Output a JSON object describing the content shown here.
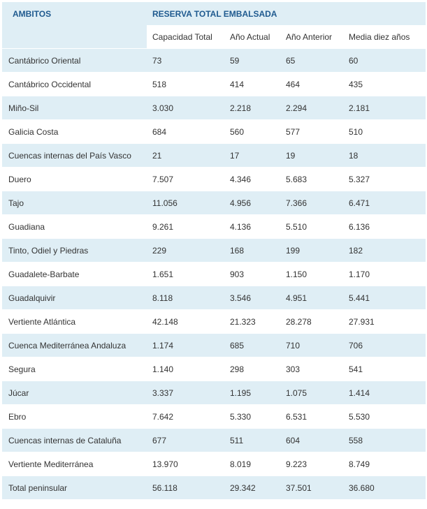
{
  "header": {
    "ambitos_label": "AMBITOS",
    "reserva_label": "RESERVA TOTAL EMBALSADA",
    "columns": [
      "Capacidad Total",
      "Año Actual",
      "Año Anterior",
      "Media diez años"
    ]
  },
  "rows": [
    {
      "ambito": "Cantábrico Oriental",
      "capacidad": "73",
      "actual": "59",
      "anterior": "65",
      "media": "60"
    },
    {
      "ambito": "Cantábrico Occidental",
      "capacidad": "518",
      "actual": "414",
      "anterior": "464",
      "media": "435"
    },
    {
      "ambito": "Miño-Sil",
      "capacidad": "3.030",
      "actual": "2.218",
      "anterior": "2.294",
      "media": "2.181"
    },
    {
      "ambito": "Galicia Costa",
      "capacidad": "684",
      "actual": "560",
      "anterior": "577",
      "media": "510"
    },
    {
      "ambito": "Cuencas internas del País Vasco",
      "capacidad": "21",
      "actual": "17",
      "anterior": "19",
      "media": "18"
    },
    {
      "ambito": "Duero",
      "capacidad": "7.507",
      "actual": "4.346",
      "anterior": "5.683",
      "media": "5.327"
    },
    {
      "ambito": "Tajo",
      "capacidad": "11.056",
      "actual": "4.956",
      "anterior": "7.366",
      "media": "6.471"
    },
    {
      "ambito": "Guadiana",
      "capacidad": "9.261",
      "actual": "4.136",
      "anterior": "5.510",
      "media": "6.136"
    },
    {
      "ambito": "Tinto, Odiel y Piedras",
      "capacidad": "229",
      "actual": "168",
      "anterior": "199",
      "media": "182"
    },
    {
      "ambito": "Guadalete-Barbate",
      "capacidad": "1.651",
      "actual": "903",
      "anterior": "1.150",
      "media": "1.170"
    },
    {
      "ambito": "Guadalquivir",
      "capacidad": "8.118",
      "actual": "3.546",
      "anterior": "4.951",
      "media": "5.441"
    },
    {
      "ambito": "Vertiente Atlántica",
      "capacidad": "42.148",
      "actual": "21.323",
      "anterior": "28.278",
      "media": "27.931"
    },
    {
      "ambito": "Cuenca Mediterránea Andaluza",
      "capacidad": "1.174",
      "actual": "685",
      "anterior": "710",
      "media": "706"
    },
    {
      "ambito": "Segura",
      "capacidad": "1.140",
      "actual": "298",
      "anterior": "303",
      "media": "541"
    },
    {
      "ambito": "Júcar",
      "capacidad": "3.337",
      "actual": "1.195",
      "anterior": "1.075",
      "media": "1.414"
    },
    {
      "ambito": "Ebro",
      "capacidad": "7.642",
      "actual": "5.330",
      "anterior": "6.531",
      "media": "5.530"
    },
    {
      "ambito": "Cuencas internas de Cataluña",
      "capacidad": "677",
      "actual": "511",
      "anterior": "604",
      "media": "558"
    },
    {
      "ambito": "Vertiente Mediterránea",
      "capacidad": "13.970",
      "actual": "8.019",
      "anterior": "9.223",
      "media": "8.749"
    },
    {
      "ambito": "Total peninsular",
      "capacidad": "56.118",
      "actual": "29.342",
      "anterior": "37.501",
      "media": "36.680"
    }
  ],
  "colors": {
    "header_text": "#1f5a8f",
    "row_shade": "#dfeef5",
    "text": "#333333"
  }
}
